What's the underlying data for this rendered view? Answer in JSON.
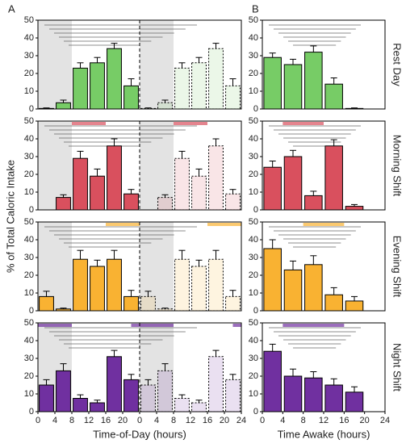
{
  "panel_labels": [
    "A",
    "B"
  ],
  "y_label": "% of Total Caloric Intake",
  "chart_data": [
    {
      "type": "bar",
      "panel": 0,
      "color": "#77cc66",
      "xlim": [
        0,
        48
      ],
      "ylim": [
        0,
        50
      ],
      "yticks": [
        0,
        10,
        20,
        30,
        40,
        50
      ],
      "bin_width": 4,
      "shading": [
        [
          0,
          8
        ],
        [
          24,
          32
        ]
      ],
      "work": [],
      "series": [
        {
          "style": "solid",
          "x": [
            2,
            6,
            10,
            14,
            18,
            22
          ],
          "values": [
            0.3,
            3.5,
            23,
            26,
            34,
            13
          ],
          "errors": [
            0.3,
            1.5,
            3,
            3,
            3,
            4
          ]
        },
        {
          "style": "dashed",
          "x": [
            26,
            30,
            34,
            38,
            42,
            46
          ],
          "values": [
            0.3,
            3.5,
            23,
            26,
            34,
            13
          ],
          "errors": [
            0.3,
            1.5,
            3,
            3,
            3,
            4
          ]
        }
      ]
    },
    {
      "type": "bar",
      "panel": 1,
      "row_label": "Rest Day",
      "color": "#77cc66",
      "xlim": [
        0,
        24
      ],
      "ylim": [
        0,
        50
      ],
      "yticks": [
        0,
        10,
        20,
        30,
        40,
        50
      ],
      "bin_width": 4,
      "shading": [],
      "work": [],
      "series": [
        {
          "style": "solid",
          "x": [
            2,
            6,
            10,
            14,
            18
          ],
          "values": [
            29,
            25,
            32,
            14,
            0.3
          ],
          "errors": [
            2.5,
            3,
            3.5,
            3.5,
            0.3
          ]
        }
      ]
    },
    {
      "type": "bar",
      "panel": 0,
      "color": "#d9505e",
      "xlim": [
        0,
        48
      ],
      "ylim": [
        0,
        50
      ],
      "yticks": [
        0,
        10,
        20,
        30,
        40,
        50
      ],
      "bin_width": 4,
      "shading": [
        [
          0,
          8
        ],
        [
          24,
          32
        ]
      ],
      "work": [
        [
          8,
          16
        ],
        [
          32,
          40
        ]
      ],
      "series": [
        {
          "style": "solid",
          "x": [
            2,
            6,
            10,
            14,
            18,
            22
          ],
          "values": [
            0,
            7,
            29,
            19,
            36,
            9
          ],
          "errors": [
            0,
            1.5,
            4,
            4,
            4,
            2.5
          ]
        },
        {
          "style": "dashed",
          "x": [
            26,
            30,
            34,
            38,
            42,
            46
          ],
          "values": [
            0,
            7,
            29,
            19,
            36,
            9
          ],
          "errors": [
            0,
            1.5,
            4,
            4,
            4,
            2.5
          ]
        }
      ]
    },
    {
      "type": "bar",
      "panel": 1,
      "row_label": "Morning Shift",
      "color": "#d9505e",
      "xlim": [
        0,
        24
      ],
      "ylim": [
        0,
        50
      ],
      "yticks": [
        0,
        10,
        20,
        30,
        40,
        50
      ],
      "bin_width": 4,
      "shading": [],
      "work": [
        [
          4,
          12
        ]
      ],
      "series": [
        {
          "style": "solid",
          "x": [
            2,
            6,
            10,
            14,
            18
          ],
          "values": [
            24,
            30,
            8,
            36,
            2
          ],
          "errors": [
            3.5,
            3.5,
            2.5,
            3.5,
            1
          ]
        }
      ]
    },
    {
      "type": "bar",
      "panel": 0,
      "color": "#f9b232",
      "xlim": [
        0,
        48
      ],
      "ylim": [
        0,
        50
      ],
      "yticks": [
        0,
        10,
        20,
        30,
        40,
        50
      ],
      "bin_width": 4,
      "shading": [
        [
          0,
          8
        ],
        [
          24,
          32
        ]
      ],
      "work": [
        [
          16,
          24
        ],
        [
          40,
          48
        ]
      ],
      "series": [
        {
          "style": "solid",
          "x": [
            2,
            6,
            10,
            14,
            18,
            22
          ],
          "values": [
            8,
            1,
            29,
            25,
            29,
            8
          ],
          "errors": [
            3,
            0.5,
            5,
            3.5,
            5,
            3.5
          ]
        },
        {
          "style": "dashed",
          "x": [
            26,
            30,
            34,
            38,
            42,
            46
          ],
          "values": [
            8,
            1,
            29,
            25,
            29,
            8
          ],
          "errors": [
            3,
            0.5,
            5,
            3.5,
            5,
            3.5
          ]
        }
      ]
    },
    {
      "type": "bar",
      "panel": 1,
      "row_label": "Evening Shift",
      "color": "#f9b232",
      "xlim": [
        0,
        24
      ],
      "ylim": [
        0,
        50
      ],
      "yticks": [
        0,
        10,
        20,
        30,
        40,
        50
      ],
      "bin_width": 4,
      "shading": [],
      "work": [
        [
          8,
          16
        ]
      ],
      "series": [
        {
          "style": "solid",
          "x": [
            2,
            6,
            10,
            14,
            18
          ],
          "values": [
            35,
            23,
            26,
            9,
            5.5
          ],
          "errors": [
            5,
            5,
            5,
            4,
            2.5
          ]
        }
      ]
    },
    {
      "type": "bar",
      "panel": 0,
      "color": "#7030a0",
      "xlim": [
        0,
        48
      ],
      "ylim": [
        0,
        50
      ],
      "yticks": [
        0,
        10,
        20,
        30,
        40,
        50
      ],
      "bin_width": 4,
      "shading": [
        [
          0,
          8
        ],
        [
          24,
          32
        ]
      ],
      "work": [
        [
          0,
          8
        ],
        [
          22,
          32
        ],
        [
          46,
          48
        ]
      ],
      "xlabel": "Time-of-Day (hours)",
      "xticks": [
        0,
        4,
        8,
        12,
        16,
        20,
        {
          "value": 24,
          "label": "0"
        },
        {
          "value": 28,
          "label": "4"
        },
        {
          "value": 32,
          "label": "8"
        },
        {
          "value": 36,
          "label": "12"
        },
        {
          "value": 40,
          "label": "16"
        },
        {
          "value": 44,
          "label": "20"
        },
        {
          "value": 48,
          "label": "24"
        }
      ],
      "series": [
        {
          "style": "solid",
          "x": [
            2,
            6,
            10,
            14,
            18,
            22
          ],
          "values": [
            15,
            23,
            7.5,
            5,
            31,
            18
          ],
          "errors": [
            3,
            4,
            2,
            1.5,
            3.5,
            3
          ]
        },
        {
          "style": "dashed",
          "x": [
            26,
            30,
            34,
            38,
            42,
            46
          ],
          "values": [
            15,
            23,
            7.5,
            5,
            31,
            18
          ],
          "errors": [
            3,
            4,
            2,
            1.5,
            3.5,
            3
          ]
        }
      ]
    },
    {
      "type": "bar",
      "panel": 1,
      "row_label": "Night Shift",
      "color": "#7030a0",
      "xlim": [
        0,
        24
      ],
      "ylim": [
        0,
        50
      ],
      "yticks": [
        0,
        10,
        20,
        30,
        40,
        50
      ],
      "bin_width": 4,
      "shading": [],
      "work": [
        [
          4,
          16
        ]
      ],
      "xlabel": "Time Awake (hours)",
      "xticks": [
        0,
        4,
        8,
        12,
        16,
        20,
        24
      ],
      "series": [
        {
          "style": "solid",
          "x": [
            2,
            6,
            10,
            14,
            18
          ],
          "values": [
            34,
            20,
            19,
            15,
            11
          ],
          "errors": [
            4,
            4,
            3.5,
            3.5,
            3
          ]
        }
      ]
    }
  ]
}
